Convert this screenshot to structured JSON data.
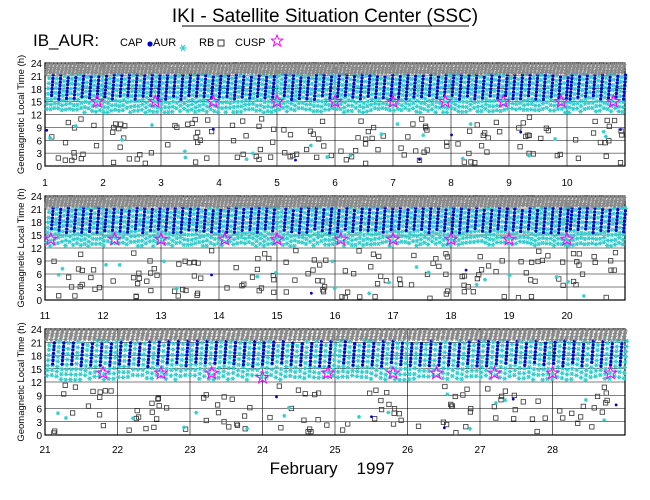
{
  "title": "IKI - Satellite Situation Center (SSC)",
  "dataset": "IB_AUR:",
  "legend": [
    {
      "label": "CAP",
      "marker": "dot",
      "color": "#0000cc"
    },
    {
      "label": "AUR",
      "marker": "asterisk",
      "color": "#33cccc"
    },
    {
      "label": "RB",
      "marker": "square",
      "color": "#333333"
    },
    {
      "label": "CUSP",
      "marker": "star",
      "color": "#ff00ff"
    }
  ],
  "month_label": "February    1997",
  "colors": {
    "cap": "#0000cc",
    "aur": "#33cccc",
    "rb": "#333333",
    "cusp": "#ff00ff",
    "gray": "#888888"
  },
  "chart_data": [
    {
      "type": "scatter",
      "panel": "1-10",
      "ylabel": "Geomagnetic Local Time (h)",
      "ylim": [
        0,
        24
      ],
      "yticks": [
        0,
        3,
        6,
        9,
        12,
        15,
        18,
        21,
        24
      ],
      "x_tick_labels": [
        "1",
        "2",
        "3",
        "4",
        "5",
        "6",
        "7",
        "8",
        "9",
        "10"
      ],
      "xlim": [
        1,
        11
      ],
      "cusp_x": [
        1.9,
        2.9,
        3.9,
        5.0,
        6.0,
        7.0,
        7.9,
        8.9,
        9.9,
        10.8
      ],
      "cusp_y": [
        15,
        15,
        15,
        15,
        15,
        15,
        15,
        15,
        15,
        15
      ]
    },
    {
      "type": "scatter",
      "panel": "11-20",
      "ylabel": "Geomagnetic Local Time (h)",
      "ylim": [
        0,
        24
      ],
      "yticks": [
        0,
        3,
        6,
        9,
        12,
        15,
        18,
        21,
        24
      ],
      "x_tick_labels": [
        "11",
        "12",
        "13",
        "14",
        "15",
        "16",
        "17",
        "18",
        "19",
        "20"
      ],
      "xlim": [
        11,
        21
      ],
      "cusp_x": [
        11.1,
        12.2,
        13.0,
        14.1,
        15.0,
        16.1,
        17.0,
        18.0,
        19.0,
        20.0
      ],
      "cusp_y": [
        14,
        14,
        14,
        14,
        14,
        14,
        14,
        14,
        14,
        14
      ]
    },
    {
      "type": "scatter",
      "panel": "21-28",
      "ylabel": "Geomagnetic Local Time (h)",
      "ylim": [
        0,
        24
      ],
      "yticks": [
        0,
        3,
        6,
        9,
        12,
        15,
        18,
        21,
        24
      ],
      "x_tick_labels": [
        "21",
        "22",
        "23",
        "24",
        "25",
        "26",
        "27",
        "28"
      ],
      "xlim": [
        21,
        29
      ],
      "cusp_x": [
        21.8,
        22.6,
        23.3,
        24.0,
        24.9,
        25.8,
        26.4,
        27.2,
        28.0,
        28.8
      ],
      "cusp_y": [
        14,
        14,
        14,
        13,
        14,
        14,
        14,
        14,
        14,
        14
      ]
    }
  ]
}
